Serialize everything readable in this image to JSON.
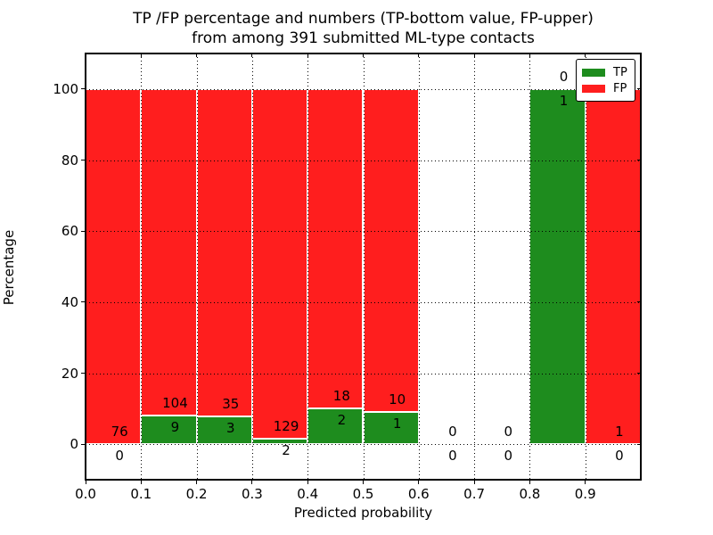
{
  "figure": {
    "title_line1": "TP /FP percentage and numbers (TP-bottom value, FP-upper)",
    "title_line2": "from among 391 submitted ML-type contacts",
    "xlabel": "Predicted probability",
    "ylabel": "Percentage"
  },
  "legend": {
    "position": "upper right",
    "items": [
      {
        "label": "TP",
        "color": "#1e8c1e"
      },
      {
        "label": "FP",
        "color": "#ff1e1e"
      }
    ]
  },
  "chart_data": {
    "type": "bar",
    "stacked": true,
    "title": "TP /FP percentage and numbers (TP-bottom value, FP-upper) from among 391 submitted ML-type contacts",
    "xlabel": "Predicted probability",
    "ylabel": "Percentage",
    "total_contacts": 391,
    "xlim": [
      0.0,
      1.0
    ],
    "ylim": [
      -10,
      110
    ],
    "xtick_labels": [
      "0.0",
      "0.1",
      "0.2",
      "0.3",
      "0.4",
      "0.5",
      "0.6",
      "0.7",
      "0.8",
      "0.9"
    ],
    "xtick_values": [
      0.0,
      0.1,
      0.2,
      0.3,
      0.4,
      0.5,
      0.6,
      0.7,
      0.8,
      0.9
    ],
    "ytick_labels": [
      "0",
      "20",
      "40",
      "60",
      "80",
      "100"
    ],
    "ytick_values": [
      0,
      20,
      40,
      60,
      80,
      100
    ],
    "grid": true,
    "grid_style": "dotted",
    "bar_edge_color": "#ffffff",
    "series": [
      {
        "name": "TP",
        "color": "#1e8c1e"
      },
      {
        "name": "FP",
        "color": "#ff1e1e"
      }
    ],
    "bins": [
      {
        "range": [
          0.0,
          0.1
        ],
        "tp": 0,
        "fp": 76,
        "tp_pct": 0.0,
        "fp_pct": 100.0
      },
      {
        "range": [
          0.1,
          0.2
        ],
        "tp": 9,
        "fp": 104,
        "tp_pct": 7.96,
        "fp_pct": 92.04
      },
      {
        "range": [
          0.2,
          0.3
        ],
        "tp": 3,
        "fp": 35,
        "tp_pct": 7.89,
        "fp_pct": 92.11
      },
      {
        "range": [
          0.3,
          0.4
        ],
        "tp": 2,
        "fp": 129,
        "tp_pct": 1.53,
        "fp_pct": 98.47
      },
      {
        "range": [
          0.4,
          0.5
        ],
        "tp": 2,
        "fp": 18,
        "tp_pct": 10.0,
        "fp_pct": 90.0
      },
      {
        "range": [
          0.5,
          0.6
        ],
        "tp": 1,
        "fp": 10,
        "tp_pct": 9.09,
        "fp_pct": 90.91
      },
      {
        "range": [
          0.6,
          0.7
        ],
        "tp": 0,
        "fp": 0,
        "tp_pct": 0.0,
        "fp_pct": 0.0
      },
      {
        "range": [
          0.7,
          0.8
        ],
        "tp": 0,
        "fp": 0,
        "tp_pct": 0.0,
        "fp_pct": 0.0
      },
      {
        "range": [
          0.8,
          0.9
        ],
        "tp": 1,
        "fp": 0,
        "tp_pct": 100.0,
        "fp_pct": 0.0
      },
      {
        "range": [
          0.9,
          1.0
        ],
        "tp": 0,
        "fp": 1,
        "tp_pct": 0.0,
        "fp_pct": 100.0
      }
    ]
  }
}
